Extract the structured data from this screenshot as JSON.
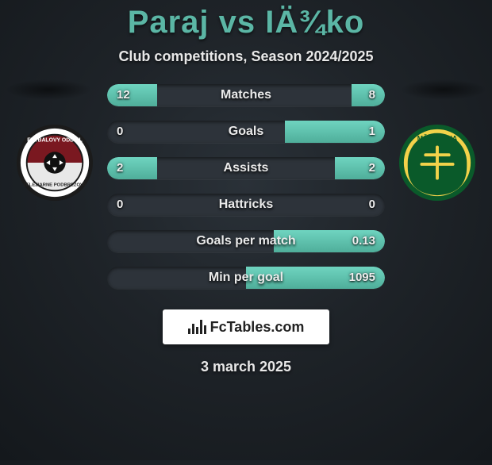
{
  "title": "Paraj vs IÄ¾ko",
  "subtitle": "Club competitions, Season 2024/2025",
  "date": "3 march 2025",
  "footer_label": "FcTables.com",
  "accent_color": "#5bb6a5",
  "bars": [
    {
      "label": "Matches",
      "left": "12",
      "right": "8",
      "left_pct": 18,
      "right_pct": 12
    },
    {
      "label": "Goals",
      "left": "0",
      "right": "1",
      "left_pct": 0,
      "right_pct": 36
    },
    {
      "label": "Assists",
      "left": "2",
      "right": "2",
      "left_pct": 18,
      "right_pct": 18
    },
    {
      "label": "Hattricks",
      "left": "0",
      "right": "0",
      "left_pct": 0,
      "right_pct": 0
    },
    {
      "label": "Goals per match",
      "left": "",
      "right": "0.13",
      "left_pct": 0,
      "right_pct": 40
    },
    {
      "label": "Min per goal",
      "left": "",
      "right": "1095",
      "left_pct": 0,
      "right_pct": 50
    }
  ],
  "crests": {
    "left": {
      "name": "zeleziarne-podbrezova",
      "outer": "#1b1b1b",
      "ring": "#ffffff",
      "top": "#7a1820",
      "bottom": "#e8e8e8"
    },
    "right": {
      "name": "msk-zilina",
      "outer": "#0a5a2a",
      "ring": "#f2d24a",
      "inner": "#0a5a2a"
    }
  }
}
